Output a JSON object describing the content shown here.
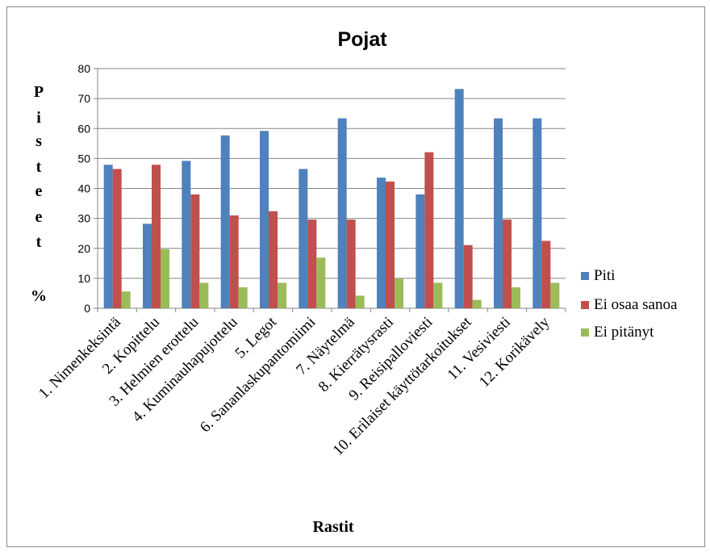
{
  "chart_data": {
    "type": "bar",
    "title": "Pojat",
    "xlabel": "Rastit",
    "ylabel": "Pisteet %",
    "ylabel_letters": [
      "P",
      "i",
      "s",
      "t",
      "e",
      "e",
      "t",
      "%"
    ],
    "ylim": [
      0,
      80
    ],
    "yticks": [
      0,
      10,
      20,
      30,
      40,
      50,
      60,
      70,
      80
    ],
    "grid": true,
    "legend_position": "right",
    "categories": [
      "1. Nimenkeksintä",
      "2. Kopittelu",
      "3. Helmien erottelu",
      "4. Kuminauhapujottelu",
      "5. Legot",
      "6. Sananlaskupantomiimi",
      "7. Näytelmä",
      "8. Kierrätysrasti",
      "9. Reisipalloviesti",
      "10. Erilaiset käyttötarkoitukset",
      "11. Vesiviesti",
      "12. Korikävely"
    ],
    "series": [
      {
        "name": "Piti",
        "color": "#4f81bd",
        "values": [
          47.9,
          28.2,
          49.2,
          57.7,
          59.2,
          46.5,
          63.4,
          43.6,
          38.0,
          73.2,
          63.4,
          63.4
        ]
      },
      {
        "name": "Ei osaa sanoa",
        "color": "#c0504d",
        "values": [
          46.5,
          47.9,
          38.0,
          31.0,
          32.4,
          29.6,
          29.6,
          42.3,
          52.1,
          21.1,
          29.6,
          22.5
        ]
      },
      {
        "name": "Ei pitänyt",
        "color": "#9bbb59",
        "values": [
          5.6,
          19.7,
          8.5,
          7.0,
          8.5,
          16.9,
          4.2,
          9.9,
          8.5,
          2.8,
          7.0,
          8.5
        ]
      }
    ]
  }
}
